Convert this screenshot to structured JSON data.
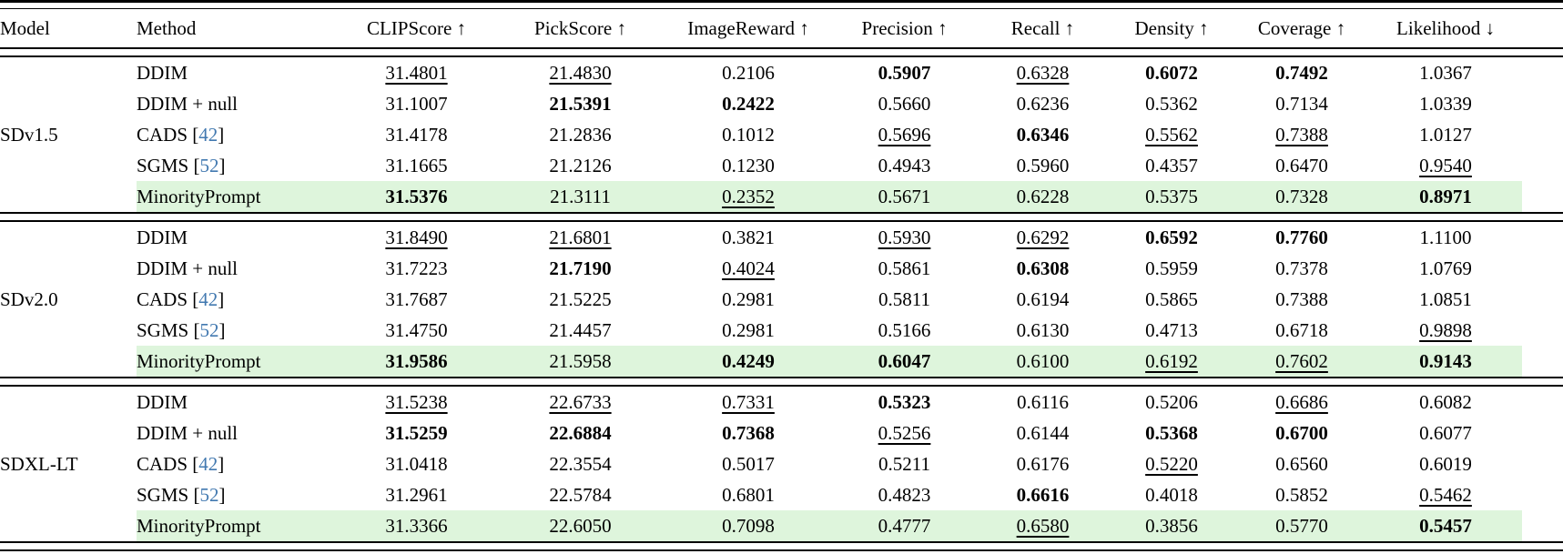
{
  "table": {
    "highlight_color": "#DEF5DC",
    "cite_color": "#4279B0",
    "cite_open": "[",
    "cite_close": "]",
    "headers": [
      {
        "key": "model",
        "label": "Model",
        "align": "left"
      },
      {
        "key": "method",
        "label": "Method",
        "align": "left"
      },
      {
        "key": "clipscore",
        "label": "CLIPScore ↑",
        "align": "center"
      },
      {
        "key": "pickscore",
        "label": "PickScore ↑",
        "align": "center"
      },
      {
        "key": "imagereward",
        "label": "ImageReward ↑",
        "align": "center"
      },
      {
        "key": "precision",
        "label": "Precision ↑",
        "align": "center"
      },
      {
        "key": "recall",
        "label": "Recall ↑",
        "align": "center"
      },
      {
        "key": "density",
        "label": "Density ↑",
        "align": "center"
      },
      {
        "key": "coverage",
        "label": "Coverage ↑",
        "align": "center"
      },
      {
        "key": "likelihood",
        "label": "Likelihood ↓",
        "align": "center"
      }
    ],
    "groups": [
      {
        "model": "SDv1.5",
        "rows": [
          {
            "method": "DDIM",
            "cite": null,
            "highlight": false,
            "values": [
              {
                "v": "31.4801",
                "f": "u"
              },
              {
                "v": "21.4830",
                "f": "u"
              },
              {
                "v": "0.2106",
                "f": ""
              },
              {
                "v": "0.5907",
                "f": "b"
              },
              {
                "v": "0.6328",
                "f": "u"
              },
              {
                "v": "0.6072",
                "f": "b"
              },
              {
                "v": "0.7492",
                "f": "b"
              },
              {
                "v": "1.0367",
                "f": ""
              }
            ]
          },
          {
            "method": "DDIM + null",
            "cite": null,
            "highlight": false,
            "values": [
              {
                "v": "31.1007",
                "f": ""
              },
              {
                "v": "21.5391",
                "f": "b"
              },
              {
                "v": "0.2422",
                "f": "b"
              },
              {
                "v": "0.5660",
                "f": ""
              },
              {
                "v": "0.6236",
                "f": ""
              },
              {
                "v": "0.5362",
                "f": ""
              },
              {
                "v": "0.7134",
                "f": ""
              },
              {
                "v": "1.0339",
                "f": ""
              }
            ]
          },
          {
            "method": "CADS",
            "cite": "42",
            "highlight": false,
            "values": [
              {
                "v": "31.4178",
                "f": ""
              },
              {
                "v": "21.2836",
                "f": ""
              },
              {
                "v": "0.1012",
                "f": ""
              },
              {
                "v": "0.5696",
                "f": "u"
              },
              {
                "v": "0.6346",
                "f": "b"
              },
              {
                "v": "0.5562",
                "f": "u"
              },
              {
                "v": "0.7388",
                "f": "u"
              },
              {
                "v": "1.0127",
                "f": ""
              }
            ]
          },
          {
            "method": "SGMS",
            "cite": "52",
            "highlight": false,
            "values": [
              {
                "v": "31.1665",
                "f": ""
              },
              {
                "v": "21.2126",
                "f": ""
              },
              {
                "v": "0.1230",
                "f": ""
              },
              {
                "v": "0.4943",
                "f": ""
              },
              {
                "v": "0.5960",
                "f": ""
              },
              {
                "v": "0.4357",
                "f": ""
              },
              {
                "v": "0.6470",
                "f": ""
              },
              {
                "v": "0.9540",
                "f": "u"
              }
            ]
          },
          {
            "method": "MinorityPrompt",
            "cite": null,
            "highlight": true,
            "values": [
              {
                "v": "31.5376",
                "f": "b"
              },
              {
                "v": "21.3111",
                "f": ""
              },
              {
                "v": "0.2352",
                "f": "u"
              },
              {
                "v": "0.5671",
                "f": ""
              },
              {
                "v": "0.6228",
                "f": ""
              },
              {
                "v": "0.5375",
                "f": ""
              },
              {
                "v": "0.7328",
                "f": ""
              },
              {
                "v": "0.8971",
                "f": "b"
              }
            ]
          }
        ]
      },
      {
        "model": "SDv2.0",
        "rows": [
          {
            "method": "DDIM",
            "cite": null,
            "highlight": false,
            "values": [
              {
                "v": "31.8490",
                "f": "u"
              },
              {
                "v": "21.6801",
                "f": "u"
              },
              {
                "v": "0.3821",
                "f": ""
              },
              {
                "v": "0.5930",
                "f": "u"
              },
              {
                "v": "0.6292",
                "f": "u"
              },
              {
                "v": "0.6592",
                "f": "b"
              },
              {
                "v": "0.7760",
                "f": "b"
              },
              {
                "v": "1.1100",
                "f": ""
              }
            ]
          },
          {
            "method": "DDIM + null",
            "cite": null,
            "highlight": false,
            "values": [
              {
                "v": "31.7223",
                "f": ""
              },
              {
                "v": "21.7190",
                "f": "b"
              },
              {
                "v": "0.4024",
                "f": "u"
              },
              {
                "v": "0.5861",
                "f": ""
              },
              {
                "v": "0.6308",
                "f": "b"
              },
              {
                "v": "0.5959",
                "f": ""
              },
              {
                "v": "0.7378",
                "f": ""
              },
              {
                "v": "1.0769",
                "f": ""
              }
            ]
          },
          {
            "method": "CADS",
            "cite": "42",
            "highlight": false,
            "values": [
              {
                "v": "31.7687",
                "f": ""
              },
              {
                "v": "21.5225",
                "f": ""
              },
              {
                "v": "0.2981",
                "f": ""
              },
              {
                "v": "0.5811",
                "f": ""
              },
              {
                "v": "0.6194",
                "f": ""
              },
              {
                "v": "0.5865",
                "f": ""
              },
              {
                "v": "0.7388",
                "f": ""
              },
              {
                "v": "1.0851",
                "f": ""
              }
            ]
          },
          {
            "method": "SGMS",
            "cite": "52",
            "highlight": false,
            "values": [
              {
                "v": "31.4750",
                "f": ""
              },
              {
                "v": "21.4457",
                "f": ""
              },
              {
                "v": "0.2981",
                "f": ""
              },
              {
                "v": "0.5166",
                "f": ""
              },
              {
                "v": "0.6130",
                "f": ""
              },
              {
                "v": "0.4713",
                "f": ""
              },
              {
                "v": "0.6718",
                "f": ""
              },
              {
                "v": "0.9898",
                "f": "u"
              }
            ]
          },
          {
            "method": "MinorityPrompt",
            "cite": null,
            "highlight": true,
            "values": [
              {
                "v": "31.9586",
                "f": "b"
              },
              {
                "v": "21.5958",
                "f": ""
              },
              {
                "v": "0.4249",
                "f": "b"
              },
              {
                "v": "0.6047",
                "f": "b"
              },
              {
                "v": "0.6100",
                "f": ""
              },
              {
                "v": "0.6192",
                "f": "u"
              },
              {
                "v": "0.7602",
                "f": "u"
              },
              {
                "v": "0.9143",
                "f": "b"
              }
            ]
          }
        ]
      },
      {
        "model": "SDXL-LT",
        "rows": [
          {
            "method": "DDIM",
            "cite": null,
            "highlight": false,
            "values": [
              {
                "v": "31.5238",
                "f": "u"
              },
              {
                "v": "22.6733",
                "f": "u"
              },
              {
                "v": "0.7331",
                "f": "u"
              },
              {
                "v": "0.5323",
                "f": "b"
              },
              {
                "v": "0.6116",
                "f": ""
              },
              {
                "v": "0.5206",
                "f": ""
              },
              {
                "v": "0.6686",
                "f": "u"
              },
              {
                "v": "0.6082",
                "f": ""
              }
            ]
          },
          {
            "method": "DDIM + null",
            "cite": null,
            "highlight": false,
            "values": [
              {
                "v": "31.5259",
                "f": "b"
              },
              {
                "v": "22.6884",
                "f": "b"
              },
              {
                "v": "0.7368",
                "f": "b"
              },
              {
                "v": "0.5256",
                "f": "u"
              },
              {
                "v": "0.6144",
                "f": ""
              },
              {
                "v": "0.5368",
                "f": "b"
              },
              {
                "v": "0.6700",
                "f": "b"
              },
              {
                "v": "0.6077",
                "f": ""
              }
            ]
          },
          {
            "method": "CADS",
            "cite": "42",
            "highlight": false,
            "values": [
              {
                "v": "31.0418",
                "f": ""
              },
              {
                "v": "22.3554",
                "f": ""
              },
              {
                "v": "0.5017",
                "f": ""
              },
              {
                "v": "0.5211",
                "f": ""
              },
              {
                "v": "0.6176",
                "f": ""
              },
              {
                "v": "0.5220",
                "f": "u"
              },
              {
                "v": "0.6560",
                "f": ""
              },
              {
                "v": "0.6019",
                "f": ""
              }
            ]
          },
          {
            "method": "SGMS",
            "cite": "52",
            "highlight": false,
            "values": [
              {
                "v": "31.2961",
                "f": ""
              },
              {
                "v": "22.5784",
                "f": ""
              },
              {
                "v": "0.6801",
                "f": ""
              },
              {
                "v": "0.4823",
                "f": ""
              },
              {
                "v": "0.6616",
                "f": "b"
              },
              {
                "v": "0.4018",
                "f": ""
              },
              {
                "v": "0.5852",
                "f": ""
              },
              {
                "v": "0.5462",
                "f": "u"
              }
            ]
          },
          {
            "method": "MinorityPrompt",
            "cite": null,
            "highlight": true,
            "values": [
              {
                "v": "31.3366",
                "f": ""
              },
              {
                "v": "22.6050",
                "f": ""
              },
              {
                "v": "0.7098",
                "f": ""
              },
              {
                "v": "0.4777",
                "f": ""
              },
              {
                "v": "0.6580",
                "f": "u"
              },
              {
                "v": "0.3856",
                "f": ""
              },
              {
                "v": "0.5770",
                "f": ""
              },
              {
                "v": "0.5457",
                "f": "b"
              }
            ]
          }
        ]
      }
    ]
  }
}
